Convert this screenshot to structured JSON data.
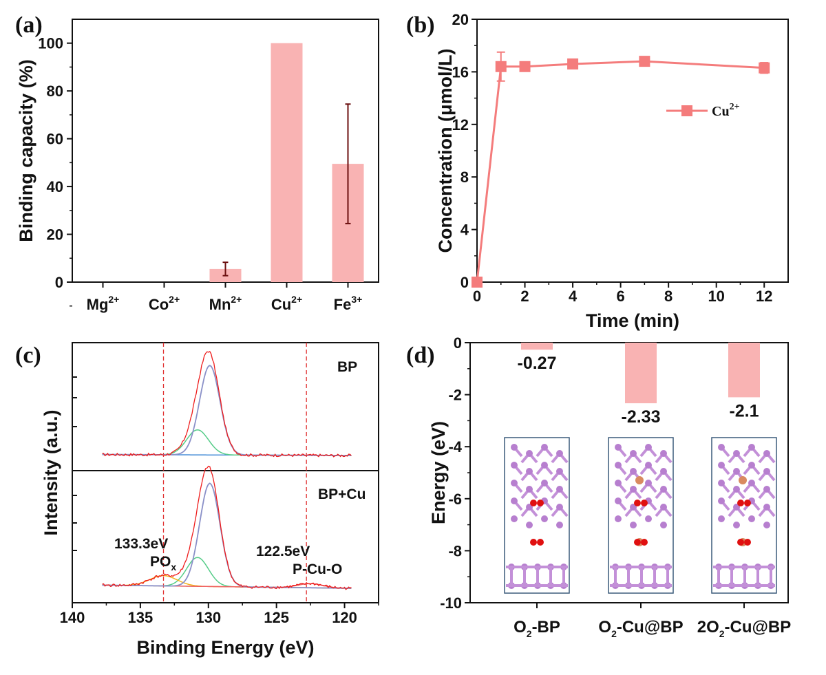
{
  "chart_data": [
    {
      "panel": "(a)",
      "type": "bar",
      "categories": [
        "Mg",
        "Co",
        "Mn",
        "Cu",
        "Fe"
      ],
      "category_superscripts": [
        "2+",
        "2+",
        "2+",
        "2+",
        "3+"
      ],
      "values": [
        0,
        0,
        5.5,
        100,
        49.5
      ],
      "errors": [
        0,
        0,
        2.8,
        0,
        25
      ],
      "ylabel": "Binding capacity (%)",
      "ylim": [
        0,
        110
      ],
      "yticks": [
        0,
        20,
        40,
        60,
        80,
        100
      ],
      "bar_color": "#f9b3b3",
      "error_color": "#6b0f0f"
    },
    {
      "panel": "(b)",
      "type": "line",
      "series": [
        {
          "name": "Cu",
          "name_superscript": "2+",
          "x": [
            0,
            1,
            2,
            4,
            7,
            12
          ],
          "y": [
            0,
            16.4,
            16.4,
            16.6,
            16.8,
            16.3
          ],
          "errors": [
            0,
            1.1,
            0.3,
            0.3,
            0.3,
            0.4
          ],
          "color": "#f47c7c"
        }
      ],
      "xlabel": "Time (min)",
      "ylabel": "Concentration (μmol/L)",
      "xlim": [
        0,
        13
      ],
      "ylim": [
        0,
        20
      ],
      "xticks": [
        0,
        2,
        4,
        6,
        8,
        10,
        12
      ],
      "yticks": [
        0,
        4,
        8,
        12,
        16,
        20
      ]
    },
    {
      "panel": "(c)",
      "type": "line",
      "xlabel": "Binding Energy (eV)",
      "ylabel": "Intensity (a.u.)",
      "xlim": [
        140,
        117.5
      ],
      "xticks": [
        140,
        135,
        130,
        125,
        120
      ],
      "subpanels": [
        {
          "label": "BP",
          "peaks": [
            {
              "center": 129.9,
              "height": 1.0
            },
            {
              "center": 130.8,
              "height": 0.28
            }
          ]
        },
        {
          "label": "BP+Cu",
          "peaks": [
            {
              "center": 129.9,
              "height": 1.0
            },
            {
              "center": 130.8,
              "height": 0.28
            },
            {
              "center": 133.3,
              "height": 0.1
            },
            {
              "center": 122.5,
              "height": 0.04
            }
          ]
        }
      ],
      "annotations": [
        {
          "energy": "133.3eV",
          "species": "PO",
          "subscript": "x",
          "x": 133.3
        },
        {
          "energy": "122.5eV",
          "species": "P-Cu-O",
          "subscript": "",
          "x": 122.8
        }
      ],
      "line_colors": {
        "raw": "#ee1c1c",
        "main": "#8a90c8",
        "second": "#55cc88",
        "pox": "#f2b21e",
        "pcuo": "#f06060",
        "baseline": "#4a8fd8"
      }
    },
    {
      "panel": "(d)",
      "type": "bar",
      "categories": [
        "O2-BP",
        "O2-Cu@BP",
        "2O2-Cu@BP"
      ],
      "category_parts": [
        [
          "O",
          "2",
          "-BP"
        ],
        [
          "O",
          "2",
          "-Cu@BP"
        ],
        [
          "2O",
          "2",
          "-Cu@BP"
        ]
      ],
      "values": [
        -0.27,
        -2.33,
        -2.1
      ],
      "value_labels": [
        "-0.27",
        "-2.33",
        "-2.1"
      ],
      "ylabel": "Energy (eV)",
      "ylim": [
        -10,
        0
      ],
      "yticks": [
        0,
        -2,
        -4,
        -6,
        -8,
        -10
      ],
      "bar_color": "#f9b3b3"
    }
  ]
}
